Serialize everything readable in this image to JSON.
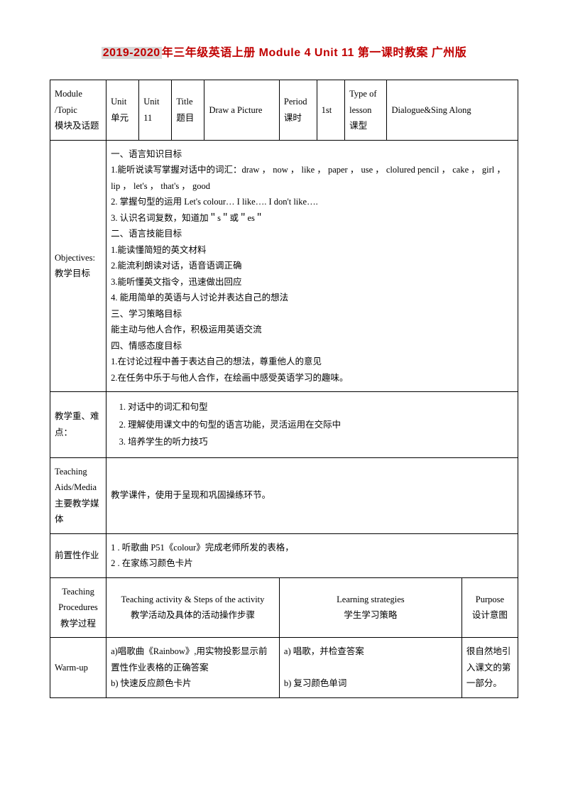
{
  "title": {
    "year": "2019-2020",
    "rest": "年三年级英语上册 Module 4 Unit 11 第一课时教案 广州版"
  },
  "header": {
    "moduleLabel": "Module /Topic\n模块及话题",
    "unitLabel": "Unit\n单元",
    "unitValue": "Unit 11",
    "titleLabel": "Title\n题目",
    "titleValue": "Draw a Picture",
    "periodLabel": "Period\n课时",
    "periodValue": "1st",
    "typeLabel": "Type of lesson\n课型",
    "typeValue": "Dialogue&Sing Along"
  },
  "objectives": {
    "label": "Objectives:\n教学目标",
    "content": "一、语言知识目标\n1.能听说读写掌握对话中的词汇：draw ， now ， like ， paper ， use ， clolured pencil ， cake ， girl ， lip ， let's ， that's ， good\n2. 掌握句型的运用 Let's colour…  I like….  I don't like….\n3. 认识名词复数，知道加＂s＂或＂es＂\n二、语言技能目标\n1.能读懂简短的英文材料\n2.能流利朗读对话，语音语调正确\n3.能听懂英文指令，迅速做出回应\n4.  能用简单的英语与人讨论并表达自己的想法\n三、学习策略目标\n能主动与他人合作，积极运用英语交流\n四、情感态度目标\n1.在讨论过程中善于表达自己的想法，尊重他人的意见\n2.在任务中乐于与他人合作，在绘画中感受英语学习的趣味。"
  },
  "keypoints": {
    "label": "教学重、难点：",
    "items": [
      "对话中的词汇和句型",
      "理解使用课文中的句型的语言功能，灵活运用在交际中",
      "培养学生的听力技巧"
    ]
  },
  "aids": {
    "label": "Teaching Aids/Media主要教学媒体",
    "content": "教学课件，使用于呈现和巩固操练环节。"
  },
  "prework": {
    "label": "前置性作业",
    "content": "1 . 听歌曲 P51《colour》完成老师所发的表格，\n2 . 在家练习颜色卡片"
  },
  "procHeader": {
    "col1": "Teaching Procedures\n教学过程",
    "col2": "Teaching activity & Steps of the activity\n教学活动及具体的活动操作步骤",
    "col3": "Learning strategies\n学生学习策略",
    "col4": "Purpose\n设计意图"
  },
  "warmup": {
    "label": "Warm-up",
    "activity": "a)唱歌曲《Rainbow》,用实物投影显示前置性作业表格的正确答案\nb) 快速反应颜色卡片",
    "strategy": "a)  唱歌，并检查答案\n\nb)  复习颜色单词",
    "purpose": "很自然地引入课文的第一部分。"
  }
}
